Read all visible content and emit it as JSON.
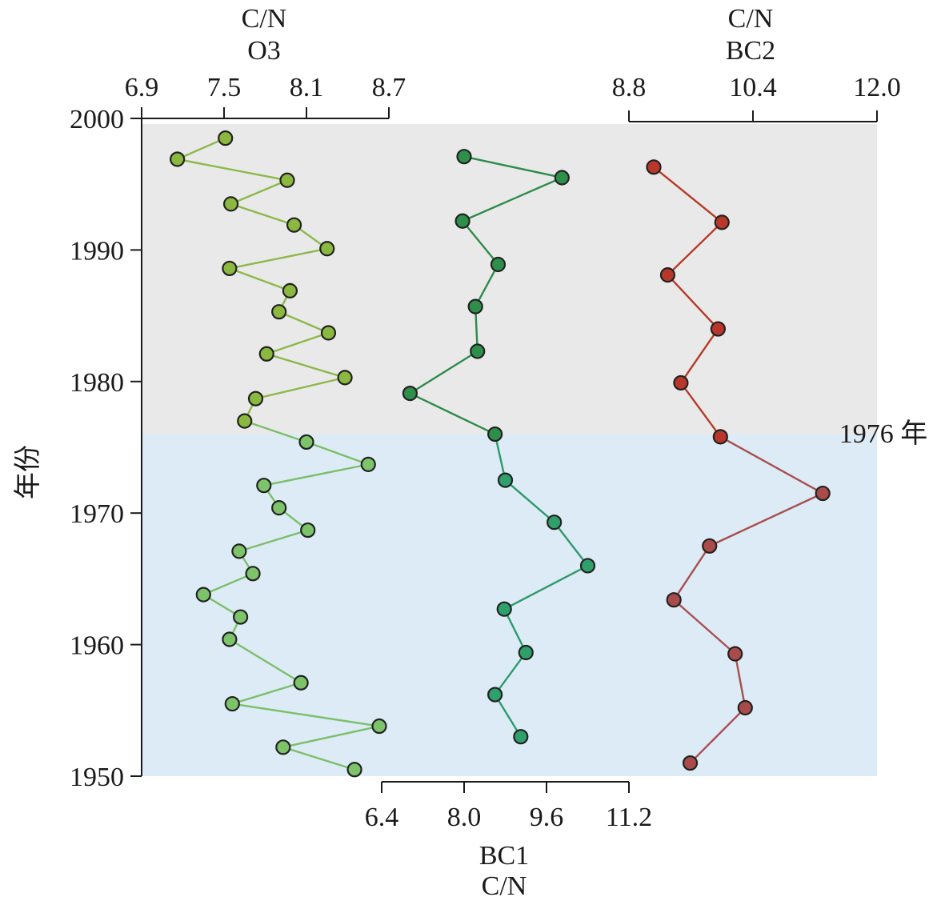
{
  "chart_data": {
    "type": "line",
    "y_axis": {
      "label": "年份",
      "ticks": [
        "2000",
        "1990",
        "1980",
        "1970",
        "1960",
        "1950"
      ],
      "range": [
        1950,
        2000
      ]
    },
    "periods": [
      {
        "from": 1976,
        "to": 2000,
        "color": "#e9e9e9"
      },
      {
        "from": 1950,
        "to": 1976,
        "color": "#dcebf5"
      }
    ],
    "annotation": "1976 年",
    "series": [
      {
        "name": "O3",
        "axis_title": "C/N",
        "axis_position": "top",
        "x_ticks": [
          "6.9",
          "7.5",
          "8.1",
          "8.7"
        ],
        "x_range": [
          6.9,
          8.7
        ],
        "line_color_recent": "#8db84a",
        "line_color_early": "#7cbf6a",
        "marker_color_recent": "#8bb83f",
        "marker_color_early": "#7cc36a",
        "points": [
          {
            "x": 7.51,
            "y": 1998.5
          },
          {
            "x": 7.16,
            "y": 1996.9
          },
          {
            "x": 7.96,
            "y": 1995.3
          },
          {
            "x": 7.55,
            "y": 1993.5
          },
          {
            "x": 8.01,
            "y": 1991.9
          },
          {
            "x": 8.25,
            "y": 1990.1
          },
          {
            "x": 7.54,
            "y": 1988.6
          },
          {
            "x": 7.98,
            "y": 1986.9
          },
          {
            "x": 7.9,
            "y": 1985.3
          },
          {
            "x": 8.26,
            "y": 1983.7
          },
          {
            "x": 7.81,
            "y": 1982.1
          },
          {
            "x": 8.38,
            "y": 1980.3
          },
          {
            "x": 7.73,
            "y": 1978.7
          },
          {
            "x": 7.65,
            "y": 1977.0
          },
          {
            "x": 8.1,
            "y": 1975.4
          },
          {
            "x": 8.55,
            "y": 1973.7
          },
          {
            "x": 7.79,
            "y": 1972.1
          },
          {
            "x": 7.9,
            "y": 1970.4
          },
          {
            "x": 8.11,
            "y": 1968.7
          },
          {
            "x": 7.61,
            "y": 1967.1
          },
          {
            "x": 7.71,
            "y": 1965.4
          },
          {
            "x": 7.35,
            "y": 1963.8
          },
          {
            "x": 7.62,
            "y": 1962.1
          },
          {
            "x": 7.54,
            "y": 1960.4
          },
          {
            "x": 8.06,
            "y": 1957.1
          },
          {
            "x": 7.56,
            "y": 1955.5
          },
          {
            "x": 8.63,
            "y": 1953.8
          },
          {
            "x": 7.93,
            "y": 1952.2
          },
          {
            "x": 8.45,
            "y": 1950.5
          }
        ]
      },
      {
        "name": "BC1",
        "axis_title": "C/N",
        "axis_position": "bottom",
        "x_ticks": [
          "6.4",
          "8.0",
          "9.6",
          "11.2"
        ],
        "x_range": [
          6.4,
          11.2
        ],
        "line_color_recent": "#2e8b4b",
        "line_color_early": "#2e9a6c",
        "marker_color_recent": "#2e8f4a",
        "marker_color_early": "#2fa06c",
        "points": [
          {
            "x": 8.0,
            "y": 1997.1
          },
          {
            "x": 9.9,
            "y": 1995.5
          },
          {
            "x": 7.97,
            "y": 1992.2
          },
          {
            "x": 8.66,
            "y": 1988.9
          },
          {
            "x": 8.22,
            "y": 1985.7
          },
          {
            "x": 8.26,
            "y": 1982.3
          },
          {
            "x": 6.95,
            "y": 1979.1
          },
          {
            "x": 8.6,
            "y": 1976.0
          },
          {
            "x": 8.8,
            "y": 1972.5
          },
          {
            "x": 9.75,
            "y": 1969.3
          },
          {
            "x": 10.4,
            "y": 1966.0
          },
          {
            "x": 8.78,
            "y": 1962.7
          },
          {
            "x": 9.2,
            "y": 1959.4
          },
          {
            "x": 8.6,
            "y": 1956.2
          },
          {
            "x": 9.1,
            "y": 1953.0
          }
        ]
      },
      {
        "name": "BC2",
        "axis_title": "C/N",
        "axis_position": "top",
        "x_ticks": [
          "8.8",
          "10.4",
          "12.0"
        ],
        "x_range": [
          8.8,
          12.0
        ],
        "line_color_recent": "#b53a28",
        "line_color_early": "#a85050",
        "marker_color_recent": "#b8372a",
        "marker_color_early": "#a94b4b",
        "points": [
          {
            "x": 9.12,
            "y": 1996.3
          },
          {
            "x": 10.0,
            "y": 1992.1
          },
          {
            "x": 9.3,
            "y": 1988.1
          },
          {
            "x": 9.95,
            "y": 1984.0
          },
          {
            "x": 9.47,
            "y": 1979.9
          },
          {
            "x": 9.98,
            "y": 1975.8
          },
          {
            "x": 11.3,
            "y": 1971.5
          },
          {
            "x": 9.84,
            "y": 1967.5
          },
          {
            "x": 9.38,
            "y": 1963.4
          },
          {
            "x": 10.17,
            "y": 1959.3
          },
          {
            "x": 10.3,
            "y": 1955.2
          },
          {
            "x": 9.59,
            "y": 1951.0
          }
        ]
      }
    ]
  }
}
